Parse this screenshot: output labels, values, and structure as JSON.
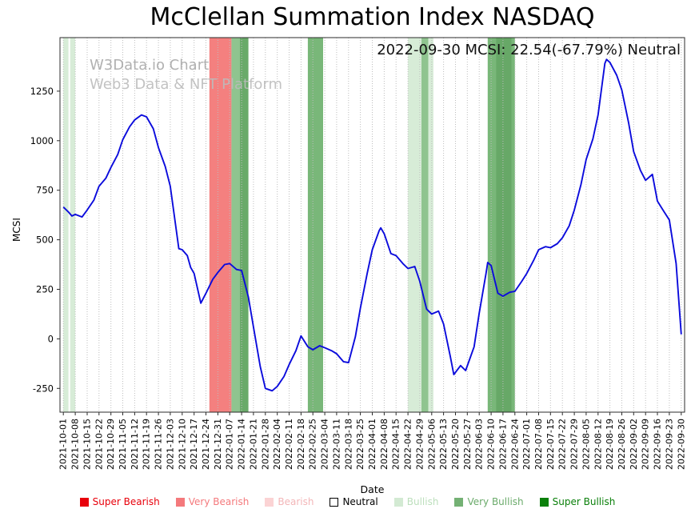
{
  "watermark": {
    "line1": "W3Data.io Chart",
    "line2": "Web3 Data & NFT Platform"
  },
  "chart_data": {
    "type": "line",
    "title": "McClellan Summation Index NASDAQ",
    "annotation": "2022-09-30 MCSI: 22.54(-67.79%) Neutral",
    "xlabel": "Date",
    "ylabel": "MCSI",
    "latest": {
      "date": "2022-09-30",
      "mcsi": 22.54,
      "change_pct": -67.79,
      "signal": "Neutral"
    },
    "xlim": [
      "2021-09-29",
      "2022-10-02"
    ],
    "ylim": [
      -370,
      1520
    ],
    "yticks": [
      -250,
      0,
      250,
      500,
      750,
      1000,
      1250
    ],
    "xticks": [
      "2021-10-01",
      "2021-10-08",
      "2021-10-15",
      "2021-10-22",
      "2021-10-29",
      "2021-11-05",
      "2021-11-12",
      "2021-11-19",
      "2021-11-26",
      "2021-12-03",
      "2021-12-10",
      "2021-12-17",
      "2021-12-24",
      "2021-12-31",
      "2022-01-07",
      "2022-01-14",
      "2022-01-21",
      "2022-01-28",
      "2022-02-04",
      "2022-02-11",
      "2022-02-18",
      "2022-02-25",
      "2022-03-04",
      "2022-03-11",
      "2022-03-18",
      "2022-03-25",
      "2022-04-01",
      "2022-04-08",
      "2022-04-15",
      "2022-04-22",
      "2022-04-29",
      "2022-05-06",
      "2022-05-13",
      "2022-05-20",
      "2022-05-27",
      "2022-06-03",
      "2022-06-10",
      "2022-06-17",
      "2022-06-24",
      "2022-07-01",
      "2022-07-08",
      "2022-07-15",
      "2022-07-22",
      "2022-07-29",
      "2022-08-05",
      "2022-08-12",
      "2022-08-19",
      "2022-08-26",
      "2022-09-02",
      "2022-09-09",
      "2022-09-16",
      "2022-09-23",
      "2022-09-30"
    ],
    "line_color": "#0b0bdc",
    "grid_color": "#bdbdbd",
    "grid_style": "dotted",
    "series": [
      {
        "name": "MCSI",
        "points": [
          [
            "2021-10-01",
            665
          ],
          [
            "2021-10-04",
            640
          ],
          [
            "2021-10-06",
            620
          ],
          [
            "2021-10-08",
            628
          ],
          [
            "2021-10-12",
            615
          ],
          [
            "2021-10-15",
            650
          ],
          [
            "2021-10-19",
            700
          ],
          [
            "2021-10-22",
            770
          ],
          [
            "2021-10-26",
            810
          ],
          [
            "2021-10-29",
            865
          ],
          [
            "2021-11-02",
            930
          ],
          [
            "2021-11-05",
            1005
          ],
          [
            "2021-11-09",
            1070
          ],
          [
            "2021-11-12",
            1105
          ],
          [
            "2021-11-16",
            1130
          ],
          [
            "2021-11-19",
            1120
          ],
          [
            "2021-11-23",
            1060
          ],
          [
            "2021-11-26",
            965
          ],
          [
            "2021-11-30",
            870
          ],
          [
            "2021-12-03",
            770
          ],
          [
            "2021-12-08",
            455
          ],
          [
            "2021-12-10",
            450
          ],
          [
            "2021-12-13",
            420
          ],
          [
            "2021-12-15",
            360
          ],
          [
            "2021-12-17",
            330
          ],
          [
            "2021-12-21",
            180
          ],
          [
            "2021-12-24",
            230
          ],
          [
            "2021-12-28",
            300
          ],
          [
            "2021-12-31",
            335
          ],
          [
            "2022-01-04",
            375
          ],
          [
            "2022-01-07",
            380
          ],
          [
            "2022-01-11",
            350
          ],
          [
            "2022-01-14",
            345
          ],
          [
            "2022-01-18",
            210
          ],
          [
            "2022-01-21",
            60
          ],
          [
            "2022-01-25",
            -140
          ],
          [
            "2022-01-28",
            -250
          ],
          [
            "2022-02-01",
            -262
          ],
          [
            "2022-02-04",
            -240
          ],
          [
            "2022-02-08",
            -190
          ],
          [
            "2022-02-11",
            -130
          ],
          [
            "2022-02-15",
            -60
          ],
          [
            "2022-02-18",
            15
          ],
          [
            "2022-02-22",
            -40
          ],
          [
            "2022-02-25",
            -55
          ],
          [
            "2022-03-01",
            -35
          ],
          [
            "2022-03-04",
            -45
          ],
          [
            "2022-03-08",
            -60
          ],
          [
            "2022-03-11",
            -75
          ],
          [
            "2022-03-15",
            -115
          ],
          [
            "2022-03-18",
            -120
          ],
          [
            "2022-03-22",
            10
          ],
          [
            "2022-03-25",
            155
          ],
          [
            "2022-03-29",
            330
          ],
          [
            "2022-04-01",
            450
          ],
          [
            "2022-04-05",
            545
          ],
          [
            "2022-04-06",
            560
          ],
          [
            "2022-04-08",
            530
          ],
          [
            "2022-04-12",
            430
          ],
          [
            "2022-04-15",
            420
          ],
          [
            "2022-04-19",
            380
          ],
          [
            "2022-04-22",
            355
          ],
          [
            "2022-04-26",
            365
          ],
          [
            "2022-04-29",
            290
          ],
          [
            "2022-05-03",
            150
          ],
          [
            "2022-05-06",
            125
          ],
          [
            "2022-05-10",
            140
          ],
          [
            "2022-05-13",
            75
          ],
          [
            "2022-05-17",
            -90
          ],
          [
            "2022-05-19",
            -180
          ],
          [
            "2022-05-23",
            -135
          ],
          [
            "2022-05-26",
            -160
          ],
          [
            "2022-05-31",
            -40
          ],
          [
            "2022-06-03",
            130
          ],
          [
            "2022-06-07",
            330
          ],
          [
            "2022-06-08",
            385
          ],
          [
            "2022-06-10",
            370
          ],
          [
            "2022-06-14",
            230
          ],
          [
            "2022-06-17",
            215
          ],
          [
            "2022-06-21",
            235
          ],
          [
            "2022-06-24",
            240
          ],
          [
            "2022-06-28",
            290
          ],
          [
            "2022-07-01",
            330
          ],
          [
            "2022-07-05",
            395
          ],
          [
            "2022-07-08",
            450
          ],
          [
            "2022-07-12",
            465
          ],
          [
            "2022-07-15",
            460
          ],
          [
            "2022-07-19",
            480
          ],
          [
            "2022-07-22",
            510
          ],
          [
            "2022-07-26",
            570
          ],
          [
            "2022-07-29",
            650
          ],
          [
            "2022-08-02",
            780
          ],
          [
            "2022-08-05",
            905
          ],
          [
            "2022-08-09",
            1010
          ],
          [
            "2022-08-12",
            1130
          ],
          [
            "2022-08-16",
            1390
          ],
          [
            "2022-08-17",
            1410
          ],
          [
            "2022-08-19",
            1395
          ],
          [
            "2022-08-23",
            1330
          ],
          [
            "2022-08-26",
            1255
          ],
          [
            "2022-08-30",
            1090
          ],
          [
            "2022-09-02",
            945
          ],
          [
            "2022-09-06",
            850
          ],
          [
            "2022-09-09",
            800
          ],
          [
            "2022-09-13",
            830
          ],
          [
            "2022-09-16",
            695
          ],
          [
            "2022-09-20",
            640
          ],
          [
            "2022-09-23",
            600
          ],
          [
            "2022-09-27",
            380
          ],
          [
            "2022-09-30",
            22.54
          ]
        ]
      }
    ],
    "bands": [
      {
        "from": "2021-10-01",
        "to": "2021-10-04",
        "color": "#d7ecd7"
      },
      {
        "from": "2021-10-05",
        "to": "2021-10-08",
        "color": "#d7ecd7"
      },
      {
        "from": "2021-12-26",
        "to": "2022-01-08",
        "color": "#f4807f"
      },
      {
        "from": "2022-01-08",
        "to": "2022-01-13",
        "color": "#8fc48f"
      },
      {
        "from": "2022-01-13",
        "to": "2022-01-18",
        "color": "#69aa69"
      },
      {
        "from": "2022-02-22",
        "to": "2022-03-03",
        "color": "#79b779"
      },
      {
        "from": "2022-04-22",
        "to": "2022-04-30",
        "color": "#d7ecd7"
      },
      {
        "from": "2022-04-30",
        "to": "2022-05-04",
        "color": "#8fc48f"
      },
      {
        "from": "2022-05-04",
        "to": "2022-05-07",
        "color": "#d7ecd7"
      },
      {
        "from": "2022-06-08",
        "to": "2022-06-24",
        "color": "#79b779"
      },
      {
        "from": "2022-06-13",
        "to": "2022-06-22",
        "color": "#67a867"
      }
    ],
    "legend": [
      {
        "label": "Super Bearish",
        "color": "#e8000b",
        "text_color": "#e8000b",
        "border": false
      },
      {
        "label": "Very Bearish",
        "color": "#f4797c",
        "text_color": "#f4797c",
        "border": false
      },
      {
        "label": "Bearish",
        "color": "#fbd3d4",
        "text_color": "#f3b6b8",
        "border": false
      },
      {
        "label": "Neutral",
        "color": "#ffffff",
        "text_color": "#000000",
        "border": true
      },
      {
        "label": "Bullish",
        "color": "#d3ead3",
        "text_color": "#bcdfbc",
        "border": false
      },
      {
        "label": "Very Bullish",
        "color": "#74b174",
        "text_color": "#6bab6b",
        "border": false
      },
      {
        "label": "Super Bullish",
        "color": "#0b800b",
        "text_color": "#0b800b",
        "border": false
      }
    ],
    "legend_position": "bottom"
  }
}
